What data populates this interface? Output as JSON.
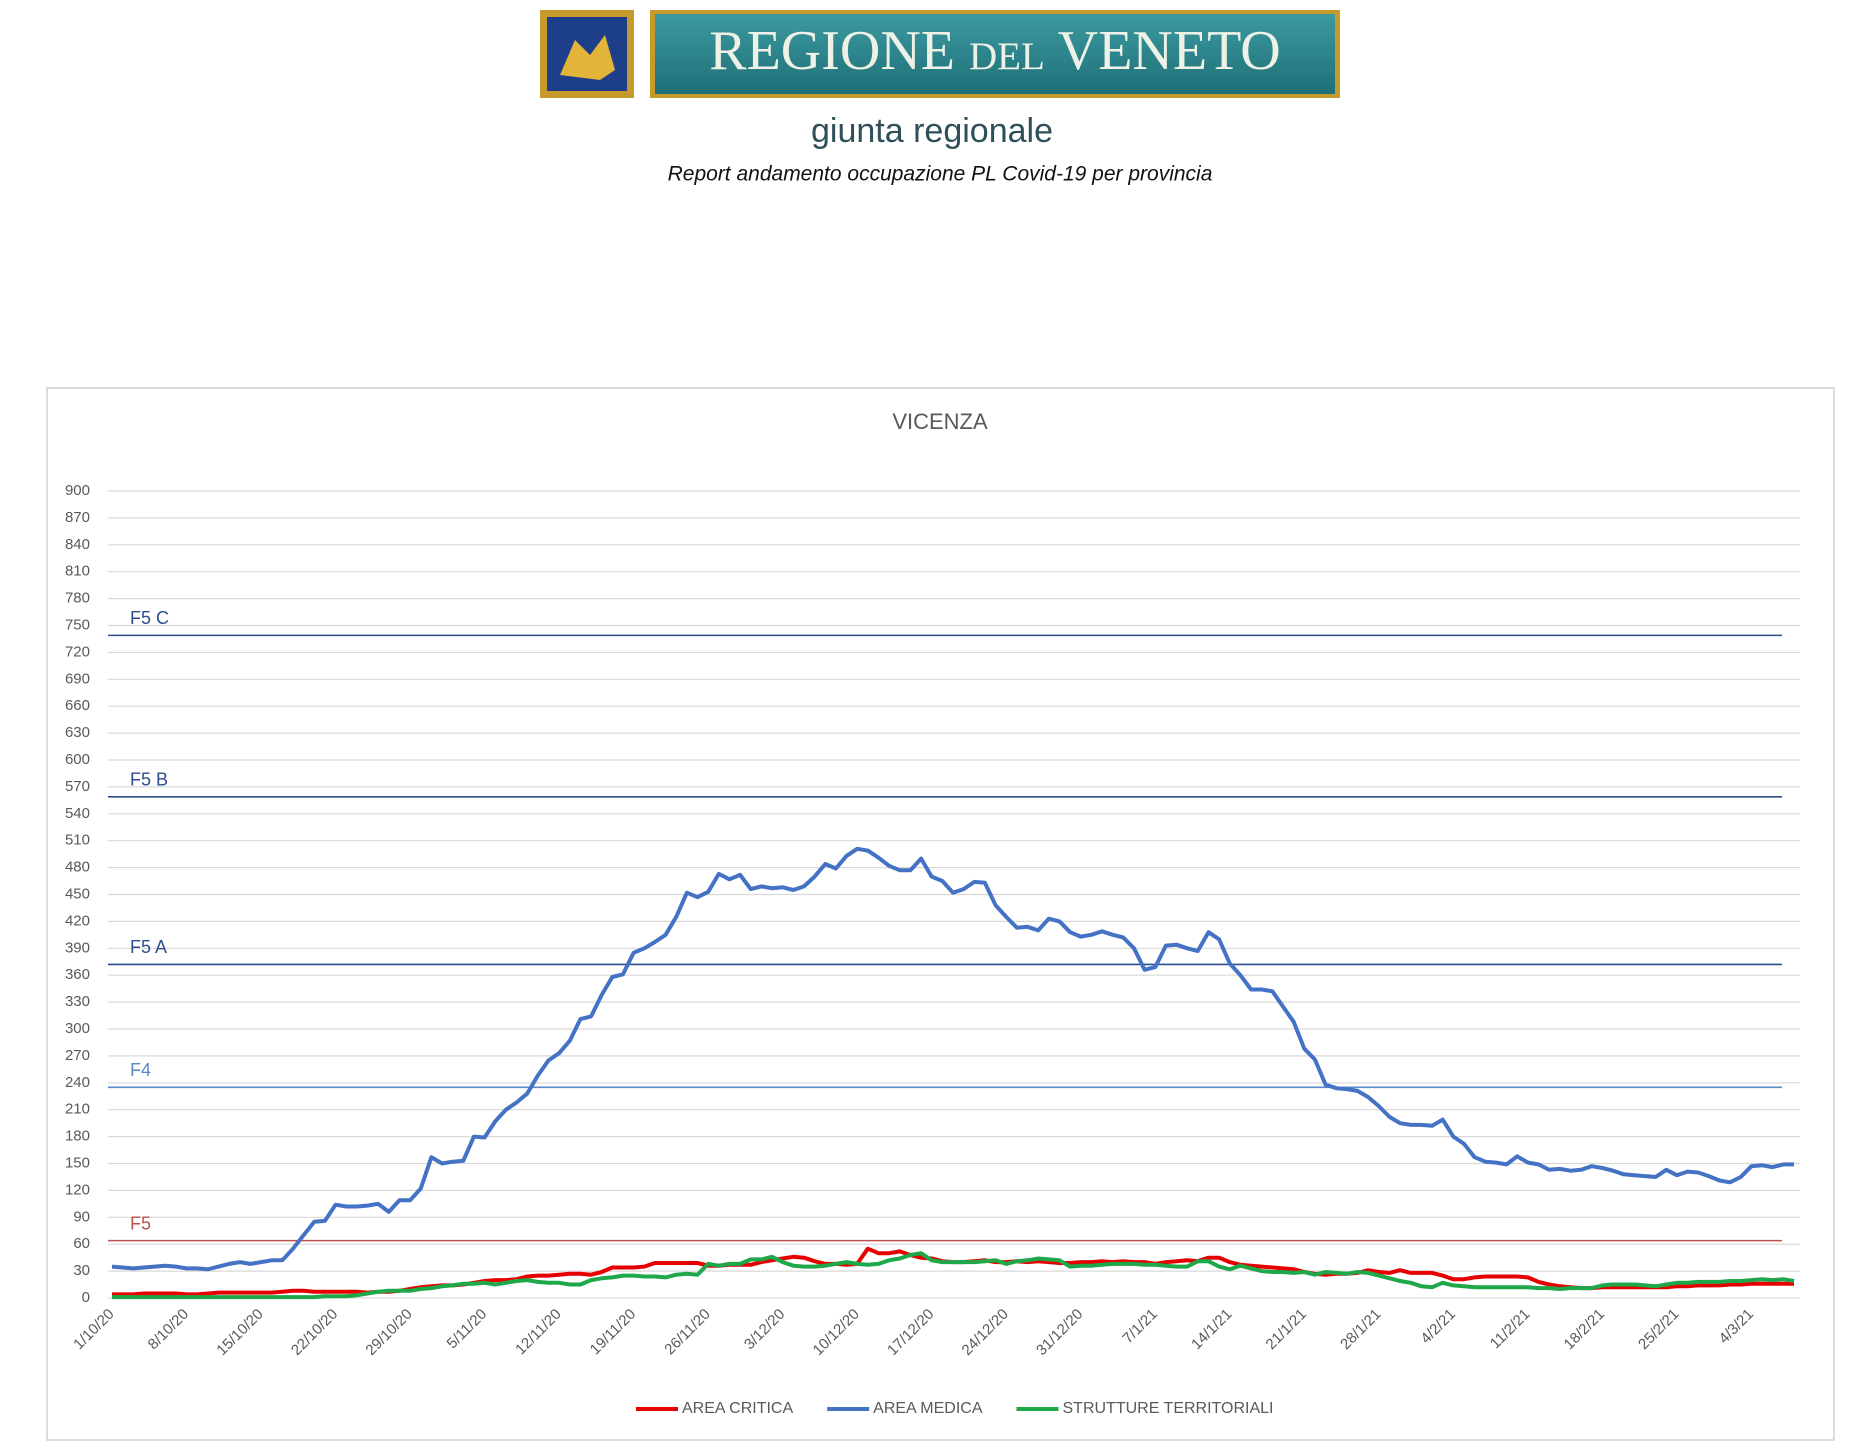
{
  "header": {
    "logo_text": "REGIONE del VENETO",
    "subtitle": "giunta regionale",
    "report_title": "Report andamento occupazione PL Covid-19 per provincia"
  },
  "chart_data": {
    "type": "line",
    "title": "VICENZA",
    "categories": [
      "1/10/20",
      null,
      null,
      null,
      null,
      null,
      null,
      "8/10/20",
      null,
      null,
      null,
      null,
      null,
      null,
      "15/10/20",
      null,
      null,
      null,
      null,
      null,
      null,
      "22/10/20",
      null,
      null,
      null,
      null,
      null,
      null,
      "29/10/20",
      null,
      null,
      null,
      null,
      null,
      null,
      "5/11/20",
      null,
      null,
      null,
      null,
      null,
      null,
      "12/11/20",
      null,
      null,
      null,
      null,
      null,
      null,
      "19/11/20",
      null,
      null,
      null,
      null,
      null,
      null,
      "26/11/20",
      null,
      null,
      null,
      null,
      null,
      null,
      "3/12/20",
      null,
      null,
      null,
      null,
      null,
      null,
      "10/12/20",
      null,
      null,
      null,
      null,
      null,
      null,
      "17/12/20",
      null,
      null,
      null,
      null,
      null,
      null,
      "24/12/20",
      null,
      null,
      null,
      null,
      null,
      null,
      "31/12/20",
      null,
      null,
      null,
      null,
      null,
      null,
      "7/1/21",
      null,
      null,
      null,
      null,
      null,
      null,
      "14/1/21",
      null,
      null,
      null,
      null,
      null,
      null,
      "21/1/21",
      null,
      null,
      null,
      null,
      null,
      null,
      "28/1/21",
      null,
      null,
      null,
      null,
      null,
      null,
      "4/2/21",
      null,
      null,
      null,
      null,
      null,
      null,
      "11/2/21",
      null,
      null,
      null,
      null,
      null,
      null,
      "18/2/21",
      null,
      null,
      null,
      null,
      null,
      null,
      "25/2/21",
      null,
      null,
      null,
      null,
      null,
      null,
      "4/3/21",
      null,
      null,
      null,
      null
    ],
    "series": [
      {
        "name": "AREA CRITICA",
        "color": "#e60000",
        "values": [
          4,
          4,
          4,
          5,
          5,
          5,
          5,
          4,
          4,
          5,
          6,
          6,
          6,
          6,
          6,
          6,
          7,
          8,
          8,
          7,
          7,
          7,
          7,
          7,
          6,
          7,
          7,
          8,
          10,
          12,
          13,
          14,
          14,
          15,
          17,
          19,
          20,
          20,
          21,
          24,
          25,
          25,
          26,
          27,
          27,
          26,
          29,
          34,
          34,
          34,
          35,
          39,
          39,
          39,
          39,
          39,
          36,
          36,
          37,
          37,
          37,
          40,
          42,
          44,
          46,
          45,
          41,
          38,
          38,
          37,
          38,
          55,
          50,
          50,
          52,
          48,
          45,
          44,
          41,
          40,
          40,
          41,
          42,
          40,
          40,
          41,
          40,
          41,
          40,
          39,
          39,
          40,
          40,
          41,
          40,
          41,
          40,
          40,
          38,
          40,
          41,
          42,
          41,
          45,
          45,
          40,
          37,
          36,
          35,
          34,
          33,
          32,
          29,
          27,
          26,
          27,
          27,
          28,
          31,
          29,
          28,
          31,
          28,
          28,
          28,
          25,
          21,
          21,
          23,
          24,
          24,
          24,
          24,
          23,
          18,
          15,
          13,
          12,
          11,
          11,
          12,
          12,
          12,
          12,
          12,
          12,
          12,
          13,
          13,
          14,
          14,
          14,
          15,
          15,
          16,
          16,
          16,
          16,
          16
        ]
      },
      {
        "name": "AREA MEDICA",
        "color": "#4472c4",
        "values": [
          35,
          34,
          33,
          34,
          35,
          36,
          35,
          33,
          33,
          32,
          35,
          38,
          40,
          38,
          40,
          42,
          42,
          55,
          70,
          85,
          86,
          104,
          102,
          102,
          103,
          105,
          96,
          109,
          109,
          122,
          157,
          150,
          152,
          153,
          180,
          179,
          197,
          210,
          218,
          228,
          248,
          265,
          273,
          287,
          311,
          314,
          338,
          358,
          361,
          385,
          390,
          397,
          405,
          425,
          452,
          447,
          453,
          473,
          467,
          472,
          456,
          459,
          457,
          458,
          455,
          459,
          470,
          484,
          479,
          493,
          501,
          499,
          491,
          482,
          477,
          477,
          490,
          470,
          465,
          452,
          456,
          464,
          463,
          438,
          425,
          413,
          414,
          410,
          423,
          420,
          408,
          403,
          405,
          409,
          405,
          402,
          390,
          366,
          369,
          393,
          394,
          390,
          387,
          408,
          400,
          373,
          360,
          344,
          344,
          342,
          325,
          308,
          278,
          266,
          238,
          234,
          233,
          231,
          224,
          214,
          202,
          195,
          193,
          193,
          192,
          199,
          180,
          172,
          157,
          152,
          151,
          149,
          158,
          151,
          149,
          143,
          144,
          142,
          143,
          147,
          145,
          142,
          138,
          137,
          136,
          135,
          143,
          137,
          141,
          140,
          136,
          131,
          129,
          135,
          147,
          148,
          146,
          149,
          149
        ]
      },
      {
        "name": "STRUTTURE TERRITORIALI",
        "color": "#1fa84a",
        "values": [
          1,
          1,
          1,
          1,
          1,
          1,
          1,
          1,
          1,
          1,
          1,
          1,
          1,
          1,
          1,
          1,
          1,
          1,
          1,
          1,
          2,
          2,
          2,
          3,
          5,
          7,
          8,
          8,
          8,
          10,
          11,
          13,
          14,
          16,
          16,
          17,
          15,
          17,
          19,
          20,
          18,
          17,
          17,
          15,
          15,
          20,
          22,
          23,
          25,
          25,
          24,
          24,
          23,
          26,
          27,
          26,
          38,
          36,
          38,
          38,
          43,
          43,
          46,
          40,
          36,
          35,
          35,
          36,
          38,
          40,
          38,
          37,
          38,
          42,
          44,
          48,
          50,
          42,
          40,
          40,
          40,
          40,
          41,
          42,
          38,
          41,
          42,
          44,
          43,
          42,
          35,
          36,
          36,
          37,
          38,
          38,
          38,
          37,
          37,
          36,
          35,
          35,
          41,
          41,
          35,
          32,
          36,
          33,
          30,
          29,
          29,
          28,
          29,
          26,
          29,
          28,
          27,
          29,
          28,
          25,
          22,
          19,
          17,
          13,
          12,
          17,
          14,
          13,
          12,
          12,
          12,
          12,
          12,
          12,
          11,
          11,
          10,
          11,
          11,
          11,
          14,
          15,
          15,
          15,
          14,
          13,
          15,
          17,
          17,
          18,
          18,
          18,
          19,
          19,
          20,
          21,
          20,
          21,
          19
        ]
      }
    ],
    "reference_lines": [
      {
        "label": "F5 C",
        "value": 739,
        "color": "#2e4d8f"
      },
      {
        "label": "F5 B",
        "value": 559,
        "color": "#2e4d8f"
      },
      {
        "label": "F5 A",
        "value": 372,
        "color": "#2e4d8f"
      },
      {
        "label": "F4",
        "value": 235,
        "color": "#5b87c9"
      },
      {
        "label": "F5",
        "value": 64,
        "color": "#c0504d"
      }
    ],
    "ylim": [
      0,
      900
    ],
    "yticks": [
      0,
      30,
      60,
      90,
      120,
      150,
      180,
      210,
      240,
      270,
      300,
      330,
      360,
      390,
      420,
      450,
      480,
      510,
      540,
      570,
      600,
      630,
      660,
      690,
      720,
      750,
      780,
      810,
      840,
      870,
      900
    ],
    "grid": true,
    "legend": "bottom"
  }
}
